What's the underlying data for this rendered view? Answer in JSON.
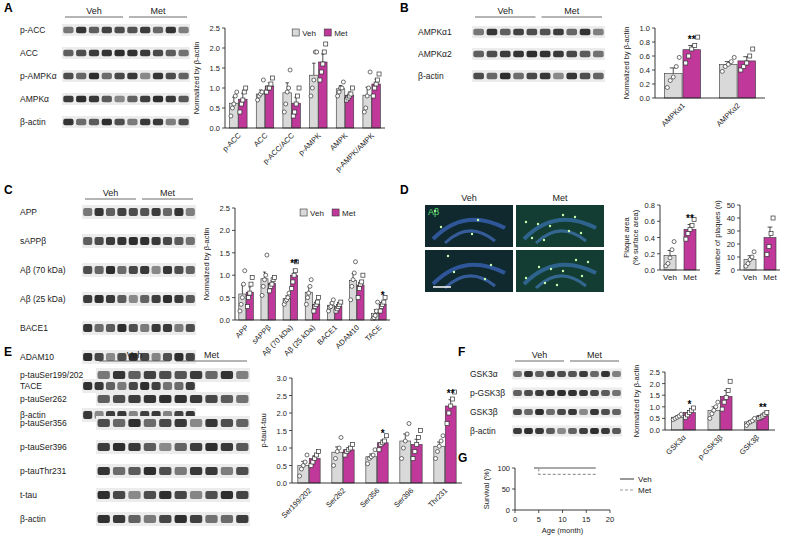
{
  "panels": [
    {
      "letter": "A",
      "groups": [
        "Veh",
        "Met"
      ],
      "rows": [
        "p-ACC",
        "ACC",
        "p-AMPKα",
        "AMPKα",
        "β-actin"
      ]
    },
    {
      "letter": "B",
      "groups": [
        "Veh",
        "Met"
      ],
      "rows": [
        "AMPKα1",
        "AMPKα2",
        "β-actin"
      ]
    },
    {
      "letter": "C",
      "groups": [
        "Veh",
        "Met"
      ],
      "rows": [
        "APP",
        "sAPPβ",
        "Aβ (70 kDa)",
        "Aβ (25 kDa)",
        "BACE1",
        "ADAM10",
        "TACE",
        "β-actin"
      ]
    },
    {
      "letter": "D",
      "groups": [
        "Veh",
        "Met"
      ],
      "stain": "Aβ"
    },
    {
      "letter": "E",
      "groups": [
        "Veh",
        "Met"
      ],
      "rows": [
        "p-tauSer199/202",
        "p-tauSer262",
        "p-tauSer356",
        "p-tauSer396",
        "p-tauThr231",
        "t-tau",
        "β-actin"
      ]
    },
    {
      "letter": "F",
      "groups": [
        "Veh",
        "Met"
      ],
      "rows": [
        "GSK3α",
        "p-GSK3β",
        "GSK3β",
        "β-actin"
      ]
    },
    {
      "letter": "G"
    }
  ],
  "chart_data": [
    {
      "type": "bar",
      "ylabel": [
        "Normalized by β-actin"
      ],
      "legend": "top",
      "categories": [
        "p-ACC",
        "ACC",
        "p-ACC/ACC",
        "p-AMPK",
        "AMPK",
        "p-AMPK/AMPK"
      ],
      "ylim": [
        0,
        2.5
      ],
      "yticks": [
        {
          "value": 0,
          "label": "0.0"
        },
        0.5,
        {
          "value": 1,
          "label": "1.0"
        },
        1.5,
        {
          "value": 2,
          "label": "2.0"
        },
        2.5
      ],
      "series": [
        {
          "name": "Veh",
          "color": "#d9d9d9",
          "marker": "circle",
          "values": [
            0.62,
            0.85,
            0.88,
            1.32,
            0.98,
            0.82
          ],
          "error": [
            0.15,
            0.1,
            0.25,
            0.3,
            0.08,
            0.2
          ],
          "points": [
            [
              0.3,
              0.5,
              0.6,
              0.8,
              0.9
            ],
            [
              0.7,
              0.8,
              0.85,
              0.9,
              1.2
            ],
            [
              0.4,
              0.6,
              0.9,
              1.0,
              1.45
            ],
            [
              0.8,
              1.0,
              1.2,
              1.9,
              1.9
            ],
            [
              0.8,
              0.9,
              1.0,
              1.0,
              1.15
            ],
            [
              0.4,
              0.5,
              0.8,
              1.0,
              1.4
            ]
          ]
        },
        {
          "name": "Met",
          "color": "#c1389b",
          "marker": "square",
          "values": [
            0.72,
            1.05,
            0.62,
            1.65,
            0.82,
            1.1
          ],
          "error": [
            0.15,
            0.08,
            0.15,
            0.2,
            0.08,
            0.12
          ],
          "points": [
            [
              0.4,
              0.6,
              0.7,
              0.9,
              1.0
            ],
            [
              0.9,
              1.0,
              1.0,
              1.1,
              1.25
            ],
            [
              0.3,
              0.4,
              0.6,
              0.8,
              1.0
            ],
            [
              1.2,
              1.4,
              1.6,
              1.9,
              2.1
            ],
            [
              0.7,
              0.75,
              0.8,
              0.85,
              1.0
            ],
            [
              0.8,
              1.0,
              1.1,
              1.2,
              1.35
            ]
          ]
        }
      ]
    },
    {
      "type": "bar",
      "ylabel": [
        "Normalized by β-actin"
      ],
      "categories": [
        "AMPKα1",
        "AMPKα2"
      ],
      "ylim": [
        0,
        1
      ],
      "yticks": [
        {
          "value": 0,
          "label": "0.0"
        },
        0.2,
        0.4,
        0.6,
        0.8,
        {
          "value": 1,
          "label": "1.0"
        }
      ],
      "series": [
        {
          "name": "Veh",
          "color": "#d9d9d9",
          "marker": "circle",
          "values": [
            0.35,
            0.48
          ],
          "error": [
            0.08,
            0.04
          ],
          "points": [
            [
              0.15,
              0.25,
              0.3,
              0.45,
              0.58
            ],
            [
              0.38,
              0.45,
              0.48,
              0.52,
              0.58
            ]
          ]
        },
        {
          "name": "Met",
          "color": "#c1389b",
          "marker": "square",
          "values": [
            0.69,
            0.53
          ],
          "error": [
            0.06,
            0.06
          ],
          "points": [
            [
              0.5,
              0.6,
              0.7,
              0.75,
              0.87
            ],
            [
              0.4,
              0.45,
              0.5,
              0.6,
              0.7
            ]
          ],
          "significance": [
            "**",
            null
          ]
        }
      ]
    },
    {
      "type": "bar",
      "ylabel": [
        "Normalized by β-actin"
      ],
      "legend": "top",
      "categories": [
        "APP",
        "sAPPβ",
        "Aβ (70 kDa)",
        "Aβ (25 kDa)",
        "BACE1",
        "ADAM10",
        "TACE"
      ],
      "ylim": [
        0,
        2.5
      ],
      "yticks": [
        {
          "value": 0,
          "label": "0.0"
        },
        0.5,
        {
          "value": 1,
          "label": "1.0"
        },
        1.5,
        {
          "value": 2,
          "label": "2.0"
        },
        2.5
      ],
      "series": [
        {
          "name": "Veh",
          "color": "#d9d9d9",
          "marker": "circle",
          "values": [
            0.58,
            0.92,
            0.48,
            0.62,
            0.33,
            0.88,
            0.15
          ],
          "error": [
            0.2,
            0.15,
            0.06,
            0.12,
            0.05,
            0.15,
            0.08
          ],
          "points": [
            [
              0.2,
              0.35,
              0.5,
              0.8,
              1.1
            ],
            [
              0.55,
              0.75,
              0.9,
              1.0,
              1.45
            ],
            [
              0.35,
              0.42,
              0.45,
              0.5,
              0.6
            ],
            [
              0.35,
              0.5,
              0.6,
              0.75,
              0.9
            ],
            [
              0.2,
              0.28,
              0.3,
              0.38,
              0.45
            ],
            [
              0.45,
              0.75,
              0.9,
              1.05,
              1.3
            ],
            [
              0.02,
              0.05,
              0.1,
              0.2,
              0.4
            ]
          ]
        },
        {
          "name": "Met",
          "color": "#c1389b",
          "marker": "square",
          "values": [
            0.62,
            0.82,
            1.0,
            0.35,
            0.3,
            0.78,
            0.35
          ],
          "error": [
            0.12,
            0.06,
            0.12,
            0.06,
            0.05,
            0.1,
            0.06
          ],
          "points": [
            [
              0.3,
              0.5,
              0.6,
              0.8,
              0.95
            ],
            [
              0.65,
              0.75,
              0.8,
              0.9,
              0.95
            ],
            [
              0.7,
              0.85,
              1.0,
              1.1,
              1.3
            ],
            [
              0.2,
              0.3,
              0.35,
              0.4,
              0.5
            ],
            [
              0.2,
              0.25,
              0.3,
              0.35,
              0.4
            ],
            [
              0.5,
              0.7,
              0.8,
              0.85,
              1.0
            ],
            [
              0.2,
              0.3,
              0.35,
              0.4,
              0.5
            ]
          ],
          "significance": [
            null,
            null,
            "**",
            null,
            null,
            null,
            "*"
          ]
        }
      ]
    },
    {
      "type": "bar",
      "ylabel": [
        "Plaque area",
        "(% surface area)"
      ],
      "categories": [
        "Veh",
        "Met"
      ],
      "ylim": [
        0,
        0.8
      ],
      "yticks": [
        {
          "value": 0,
          "label": "0.0"
        },
        0.2,
        0.4,
        0.6,
        0.8
      ],
      "series": [
        {
          "name": "Veh",
          "color": "#d9d9d9",
          "marker": "circle",
          "values": [
            0.18,
            null
          ],
          "error": [
            0.06,
            null
          ],
          "points": [
            [
              0.05,
              0.08,
              0.15,
              0.25,
              0.35
            ],
            []
          ]
        },
        {
          "name": "Met",
          "color": "#c1389b",
          "marker": "square",
          "values": [
            null,
            0.5
          ],
          "error": [
            null,
            0.06
          ],
          "points": [
            [],
            [
              0.38,
              0.45,
              0.5,
              0.55,
              0.62
            ]
          ],
          "significance": [
            null,
            "**"
          ]
        }
      ]
    },
    {
      "type": "bar",
      "ylabel": [
        "Number of plaques (n)"
      ],
      "categories": [
        "Veh",
        "Met"
      ],
      "ylim": [
        0,
        50
      ],
      "yticks": [
        0,
        10,
        20,
        30,
        40,
        50
      ],
      "series": [
        {
          "name": "Veh",
          "color": "#d9d9d9",
          "marker": "circle",
          "values": [
            8,
            null
          ],
          "error": [
            3,
            null
          ],
          "points": [
            [
              3,
              5,
              8,
              10,
              14
            ],
            []
          ]
        },
        {
          "name": "Met",
          "color": "#c1389b",
          "marker": "square",
          "values": [
            null,
            25
          ],
          "error": [
            null,
            8
          ],
          "points": [
            [],
            [
              12,
              18,
              28,
              40
            ]
          ]
        }
      ]
    },
    {
      "type": "bar",
      "ylabel": [
        "p-tau/t-tau"
      ],
      "categories": [
        "Ser199/202",
        "Ser262",
        "Ser356",
        "Ser396",
        "Thr231"
      ],
      "ylim": [
        0,
        3
      ],
      "yticks": [
        {
          "value": 0,
          "label": "0.0"
        },
        0.5,
        {
          "value": 1,
          "label": "1.0"
        },
        1.5,
        {
          "value": 2,
          "label": "2.0"
        },
        2.5,
        {
          "value": 3,
          "label": "3.0"
        }
      ],
      "series": [
        {
          "name": "Veh",
          "color": "#d9d9d9",
          "marker": "circle",
          "values": [
            0.5,
            0.88,
            0.75,
            1.2,
            1.05
          ],
          "error": [
            0.12,
            0.15,
            0.08,
            0.2,
            0.12
          ],
          "points": [
            [
              0.2,
              0.4,
              0.5,
              0.6,
              0.8
            ],
            [
              0.5,
              0.7,
              0.9,
              1.0,
              1.3
            ],
            [
              0.55,
              0.7,
              0.75,
              0.8,
              0.95
            ],
            [
              0.7,
              1.0,
              1.2,
              1.4,
              1.7
            ],
            [
              0.7,
              0.9,
              1.05,
              1.2,
              1.35
            ]
          ]
        },
        {
          "name": "Met",
          "color": "#c1389b",
          "marker": "square",
          "values": [
            0.7,
            0.95,
            1.15,
            1.1,
            2.2
          ],
          "error": [
            0.08,
            0.06,
            0.08,
            0.15,
            0.18
          ],
          "points": [
            [
              0.5,
              0.6,
              0.7,
              0.8,
              0.9
            ],
            [
              0.8,
              0.9,
              0.95,
              1.0,
              1.1
            ],
            [
              0.95,
              1.1,
              1.15,
              1.2,
              1.35
            ],
            [
              0.7,
              0.9,
              1.1,
              1.3,
              1.5
            ],
            [
              1.7,
              2.0,
              2.2,
              2.4,
              2.6
            ]
          ],
          "significance": [
            null,
            null,
            "*",
            null,
            "**"
          ]
        }
      ]
    },
    {
      "type": "bar",
      "ylabel": [
        "Normalized by β-actin"
      ],
      "categories": [
        "GSK3α",
        "p-GSK3β",
        "GSK3β"
      ],
      "ylim": [
        0,
        2.5
      ],
      "yticks": [
        {
          "value": 0,
          "label": "0.0"
        },
        0.5,
        {
          "value": 1,
          "label": "1.0"
        },
        1.5,
        {
          "value": 2,
          "label": "2.0"
        },
        2.5
      ],
      "series": [
        {
          "name": "Veh",
          "color": "#d9d9d9",
          "marker": "circle",
          "values": [
            0.55,
            0.85,
            0.35
          ],
          "error": [
            0.05,
            0.15,
            0.06
          ],
          "points": [
            [
              0.45,
              0.5,
              0.55,
              0.6,
              0.68
            ],
            [
              0.5,
              0.7,
              0.85,
              1.0,
              1.2
            ],
            [
              0.2,
              0.3,
              0.35,
              0.4,
              0.5
            ]
          ]
        },
        {
          "name": "Met",
          "color": "#c1389b",
          "marker": "square",
          "values": [
            0.75,
            1.45,
            0.62
          ],
          "error": [
            0.08,
            0.25,
            0.06
          ],
          "points": [
            [
              0.55,
              0.65,
              0.75,
              0.85,
              0.95
            ],
            [
              0.9,
              1.2,
              1.4,
              1.7,
              2.1
            ],
            [
              0.5,
              0.55,
              0.6,
              0.68,
              0.75
            ]
          ],
          "significance": [
            "*",
            null,
            "**"
          ]
        }
      ]
    },
    {
      "type": "line",
      "ylabel": [
        "Survival (%)"
      ],
      "xlabel": "Age (month)",
      "legend": "right",
      "xlim": [
        0,
        20
      ],
      "xticks": [
        0,
        5,
        10,
        15,
        20
      ],
      "ylim": [
        0,
        100
      ],
      "yticks": [
        0,
        50,
        100
      ],
      "series": [
        {
          "name": "Veh",
          "color": "#555555",
          "line_style": "solid",
          "x": [
            4,
            17
          ],
          "values": [
            100,
            100
          ]
        },
        {
          "name": "Met",
          "color": "#9a9a9a",
          "line_style": "dashed",
          "x": [
            4,
            5,
            5,
            17
          ],
          "values": [
            100,
            100,
            85,
            85
          ]
        }
      ]
    }
  ]
}
